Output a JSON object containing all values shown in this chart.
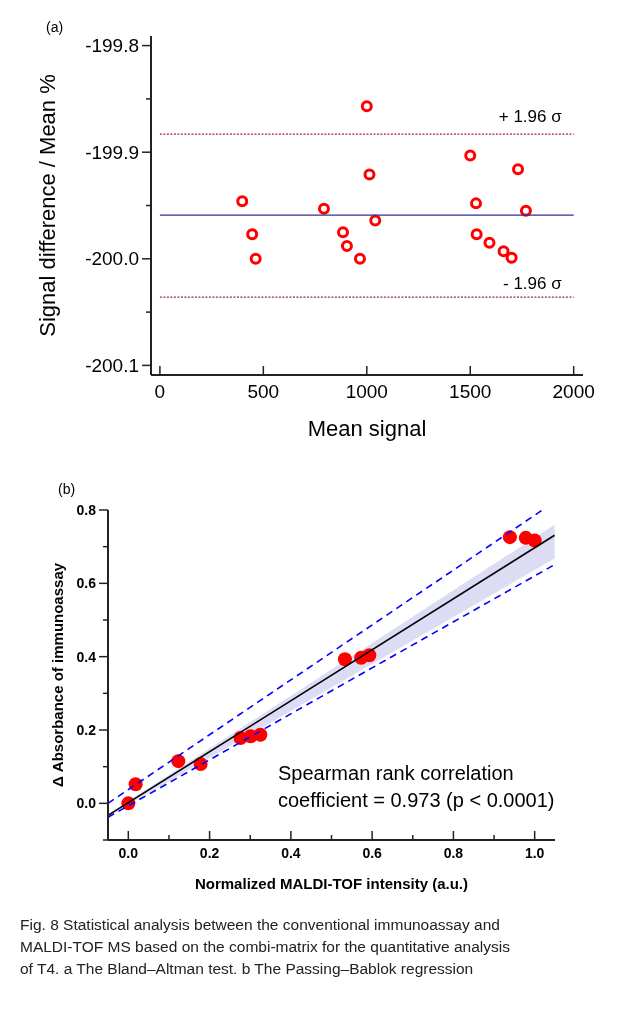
{
  "chart_data": [
    {
      "type": "scatter",
      "title": "(a)",
      "xlabel": "Mean signal",
      "ylabel": "Signal difference / Mean %",
      "marker": "circle",
      "xlim": [
        -43,
        2045
      ],
      "ylim": [
        -200.109,
        -199.791
      ],
      "xticks": [
        0,
        500,
        1000,
        1500,
        2000
      ],
      "yticks": [
        -199.8,
        {
          "value": -199.85,
          "label": null
        },
        -199.9,
        {
          "value": -199.95,
          "label": null
        },
        {
          "value": -200,
          "label": "-200.0"
        },
        {
          "value": -200.05,
          "label": null
        },
        -200.1
      ],
      "series": [
        {
          "color": "#ff0000",
          "x": [
            398,
            446,
            463,
            793,
            885,
            904,
            967,
            1000,
            1013,
            1041,
            1500,
            1528,
            1531,
            1593,
            1661,
            1700,
            1731,
            1769
          ],
          "values": [
            -199.946,
            -199.977,
            -200.0,
            -199.953,
            -199.975,
            -199.988,
            -200.0,
            -199.857,
            -199.921,
            -199.964,
            -199.903,
            -199.948,
            -199.977,
            -199.985,
            -199.993,
            -199.999,
            -199.916,
            -199.955
          ]
        }
      ],
      "ref_lines": [
        {
          "axis": "y",
          "value": -199.959,
          "label": null,
          "color": "#2e3192",
          "line_style": "solid"
        },
        {
          "axis": "y",
          "value": -199.883,
          "label": "+ 1.96 σ",
          "color": "#a0282d",
          "line_style": "dotted"
        },
        {
          "axis": "y",
          "value": -200.036,
          "label": "- 1.96 σ",
          "color": "#a0282d",
          "line_style": "dotted"
        }
      ]
    },
    {
      "type": "scatter",
      "title": "(b)",
      "xlabel": "Normalized MALDI-TOF intensity (a.u.)",
      "ylabel": "Δ Absorbance of immunoassay",
      "xlim": [
        -0.05,
        1.05
      ],
      "ylim": [
        -0.1,
        0.8
      ],
      "xticks": [
        {
          "value": 0,
          "label": "0.0"
        },
        {
          "value": 0.1,
          "label": null
        },
        0.2,
        {
          "value": 0.3,
          "label": null
        },
        0.4,
        {
          "value": 0.5,
          "label": null
        },
        0.6,
        {
          "value": 0.7,
          "label": null
        },
        0.8,
        {
          "value": 0.9,
          "label": null
        },
        {
          "value": 1,
          "label": "1.0"
        }
      ],
      "yticks": [
        {
          "value": -0.1,
          "label": null
        },
        {
          "value": 0,
          "label": "0.0"
        },
        {
          "value": 0.1,
          "label": null
        },
        0.2,
        {
          "value": 0.3,
          "label": null
        },
        0.4,
        {
          "value": 0.5,
          "label": null
        },
        0.6,
        {
          "value": 0.7,
          "label": null
        },
        0.8
      ],
      "series": [
        {
          "marker": "circle",
          "color": "#ff0000",
          "x": [
            0,
            0.018,
            0.123,
            0.178,
            0.276,
            0.301,
            0.325,
            0.533,
            0.573,
            0.593,
            0.939,
            0.978,
            1.0
          ],
          "values": [
            0,
            0.052,
            0.115,
            0.107,
            0.178,
            0.183,
            0.187,
            0.393,
            0.397,
            0.404,
            0.726,
            0.724,
            0.717
          ]
        },
        {
          "type": "line",
          "line_style": "solid",
          "color": "#000000",
          "x": [
            -0.05,
            1.049
          ],
          "values": [
            -0.033,
            0.731
          ],
          "lower": [
            -0.036,
            0.668
          ],
          "upper": [
            -0.03,
            0.76
          ]
        },
        {
          "type": "line",
          "line_style": "dashed",
          "color": "#0000ff",
          "x": [
            -0.05,
            1.019
          ],
          "values": [
            0.0,
            0.8
          ]
        },
        {
          "type": "line",
          "line_style": "dashed",
          "color": "#0000ff",
          "x": [
            -0.05,
            1.049
          ],
          "values": [
            -0.038,
            0.651
          ]
        }
      ],
      "annotations": [
        "Spearman rank correlation\ncoefficient = 0.973 (p < 0.0001)",
        "Fig. 8  Statistical analysis between the conventional immunoassay and MALDI-TOF MS based on the combi-matrix for the quantitative analysis of T4. a The Bland–Altman test. b The Passing–Bablok regression"
      ]
    }
  ]
}
